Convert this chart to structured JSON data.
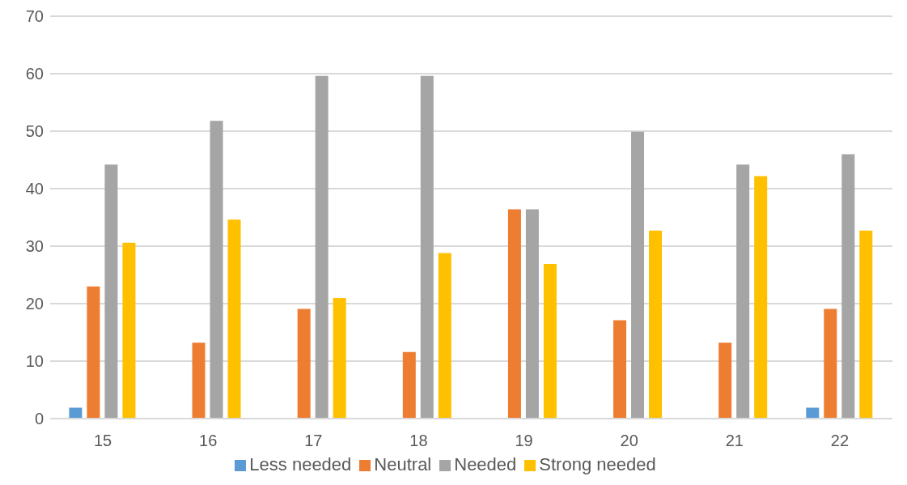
{
  "chart_data": {
    "type": "bar",
    "categories": [
      "15",
      "16",
      "17",
      "18",
      "19",
      "20",
      "21",
      "22"
    ],
    "series": [
      {
        "name": "Less needed",
        "color": "#5b9bd5",
        "values": [
          1.9,
          0,
          0,
          0,
          0,
          0,
          0,
          1.9
        ]
      },
      {
        "name": "Neutral",
        "color": "#ed7d31",
        "values": [
          23,
          13.2,
          19.1,
          11.6,
          36.4,
          17.1,
          13.2,
          19.1
        ]
      },
      {
        "name": "Needed",
        "color": "#a5a5a5",
        "values": [
          44.2,
          51.8,
          59.6,
          59.6,
          36.4,
          49.9,
          44.2,
          46
        ]
      },
      {
        "name": "Strong needed",
        "color": "#ffc000",
        "values": [
          30.6,
          34.6,
          21,
          28.8,
          26.9,
          32.7,
          42.2,
          32.7
        ]
      }
    ],
    "ylim": [
      0,
      70
    ],
    "yticks": [
      0,
      10,
      20,
      30,
      40,
      50,
      60,
      70
    ],
    "grid": "y",
    "legend": "bottom"
  }
}
